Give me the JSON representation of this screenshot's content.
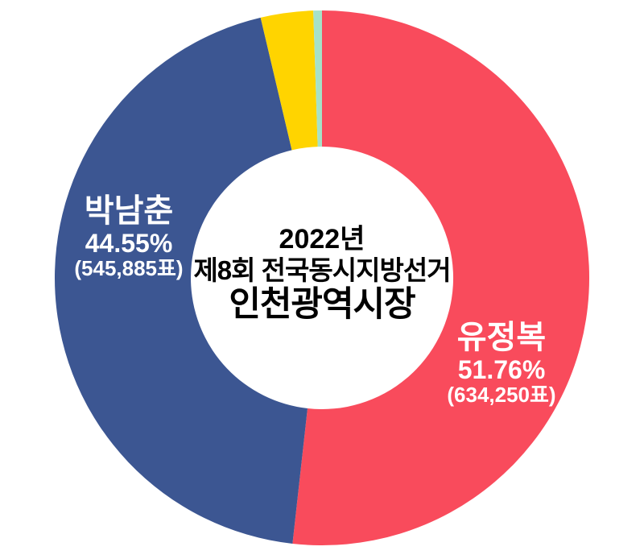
{
  "page": {
    "background_color": "#FFFFFF"
  },
  "center_title": {
    "line1": "2022년",
    "line2": "제8회 전국동시지방선거",
    "line3": "인천광역시장",
    "text_color": "#000000"
  },
  "chart_data": {
    "type": "pie",
    "subtype": "donut",
    "title": "2022년 제8회 전국동시지방선거 인천광역시장",
    "direction": "clockwise",
    "start_angle_deg_from_top": 0,
    "inner_radius_ratio": 0.49,
    "legend_position": "none",
    "slices": [
      {
        "label": "유정복",
        "percent": 51.76,
        "votes": 634250,
        "color": "#F94B5C",
        "labeled_on_chart": true
      },
      {
        "label": "박남춘",
        "percent": 44.55,
        "votes": 545885,
        "color": "#3C5692",
        "labeled_on_chart": true
      },
      {
        "label": "",
        "percent": 3.17,
        "color": "#FFD400",
        "labeled_on_chart": false,
        "note": "unlabeled thin slice, percent estimated from arc"
      },
      {
        "label": "",
        "percent": 0.52,
        "color": "#A6E2C8",
        "labeled_on_chart": false,
        "note": "unlabeled sliver, percent estimated from arc"
      }
    ]
  },
  "slice_labels": {
    "winner": {
      "name": "유정복",
      "percent": "51.76%",
      "votes": "(634,250표)",
      "text_color": "#FFFFFF"
    },
    "runner_up": {
      "name": "박남춘",
      "percent": "44.55%",
      "votes": "(545,885표)",
      "text_color": "#FFFFFF"
    }
  }
}
